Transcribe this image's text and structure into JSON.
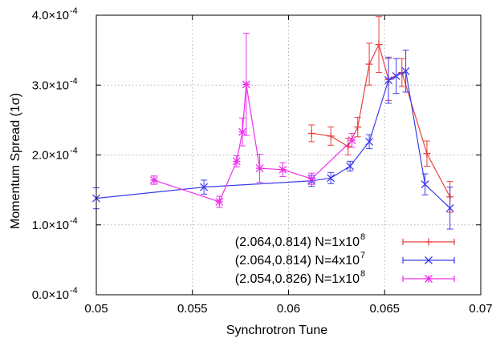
{
  "chart_data": {
    "type": "line",
    "xlabel": "Synchrotron Tune",
    "ylabel": "Momentum Spread (1σ)",
    "xlim": [
      0.05,
      0.07
    ],
    "ylim": [
      0.0,
      0.0004
    ],
    "x_ticks": [
      0.05,
      0.055,
      0.06,
      0.065,
      0.07
    ],
    "x_tick_labels": [
      "0.05",
      "0.055",
      "0.06",
      "0.065",
      "0.07"
    ],
    "y_ticks": [
      0.0,
      0.0001,
      0.0002,
      0.0003,
      0.0004
    ],
    "y_tick_labels": [
      "0.0×10",
      "1.0×10",
      "2.0×10",
      "3.0×10",
      "4.0×10"
    ],
    "y_tick_exponent": "-4",
    "grid": true,
    "legend_position": "bottom-right",
    "series": [
      {
        "name": "(2.064,0.814) N=1x10",
        "name_superscript": "8",
        "color": "#e8403c",
        "marker": "plus",
        "points": [
          {
            "x": 0.0612,
            "y": 0.000231,
            "err": 1.2e-05
          },
          {
            "x": 0.0622,
            "y": 0.000227,
            "err": 1.3e-05
          },
          {
            "x": 0.0631,
            "y": 0.000212,
            "err": 1.2e-05
          },
          {
            "x": 0.0636,
            "y": 0.00024,
            "err": 1.4e-05
          },
          {
            "x": 0.0642,
            "y": 0.00033,
            "err": 3e-05
          },
          {
            "x": 0.0647,
            "y": 0.000358,
            "err": 4e-05
          },
          {
            "x": 0.0652,
            "y": 0.000308,
            "err": 3e-05
          },
          {
            "x": 0.0659,
            "y": 0.000318,
            "err": 2e-05
          },
          {
            "x": 0.0672,
            "y": 0.000202,
            "err": 1.8e-05
          },
          {
            "x": 0.0684,
            "y": 0.00014,
            "err": 2.2e-05
          }
        ]
      },
      {
        "name": "(2.064,0.814) N=4x10",
        "name_superscript": "7",
        "color": "#3c3cf0",
        "marker": "cross",
        "points": [
          {
            "x": 0.05,
            "y": 0.000138,
            "err": 1.5e-05
          },
          {
            "x": 0.0556,
            "y": 0.000154,
            "err": 1e-05
          },
          {
            "x": 0.0612,
            "y": 0.000163,
            "err": 8e-06
          },
          {
            "x": 0.0622,
            "y": 0.000167,
            "err": 8e-06
          },
          {
            "x": 0.0632,
            "y": 0.000184,
            "err": 7e-06
          },
          {
            "x": 0.0642,
            "y": 0.000219,
            "err": 1e-05
          },
          {
            "x": 0.0652,
            "y": 0.000307,
            "err": 3.3e-05
          },
          {
            "x": 0.0656,
            "y": 0.000313,
            "err": 2.5e-05
          },
          {
            "x": 0.0661,
            "y": 0.00032,
            "err": 3e-05
          },
          {
            "x": 0.0671,
            "y": 0.000158,
            "err": 1.5e-05
          },
          {
            "x": 0.0684,
            "y": 0.000124,
            "err": 3e-05
          }
        ]
      },
      {
        "name": "(2.054,0.826) N=1x10",
        "name_superscript": "8",
        "color": "#ee30ee",
        "marker": "star",
        "points": [
          {
            "x": 0.053,
            "y": 0.000164,
            "err": 6e-06
          },
          {
            "x": 0.0564,
            "y": 0.000133,
            "err": 8e-06
          },
          {
            "x": 0.0573,
            "y": 0.000191,
            "err": 8e-06
          },
          {
            "x": 0.0576,
            "y": 0.000233,
            "err": 2e-05
          },
          {
            "x": 0.0578,
            "y": 0.000301,
            "err": 7.3e-05
          },
          {
            "x": 0.0585,
            "y": 0.000181,
            "err": 2e-05
          },
          {
            "x": 0.0597,
            "y": 0.000179,
            "err": 1e-05
          },
          {
            "x": 0.0612,
            "y": 0.000166,
            "err": 8e-06
          },
          {
            "x": 0.0633,
            "y": 0.000221,
            "err": 1e-05
          }
        ]
      }
    ]
  }
}
